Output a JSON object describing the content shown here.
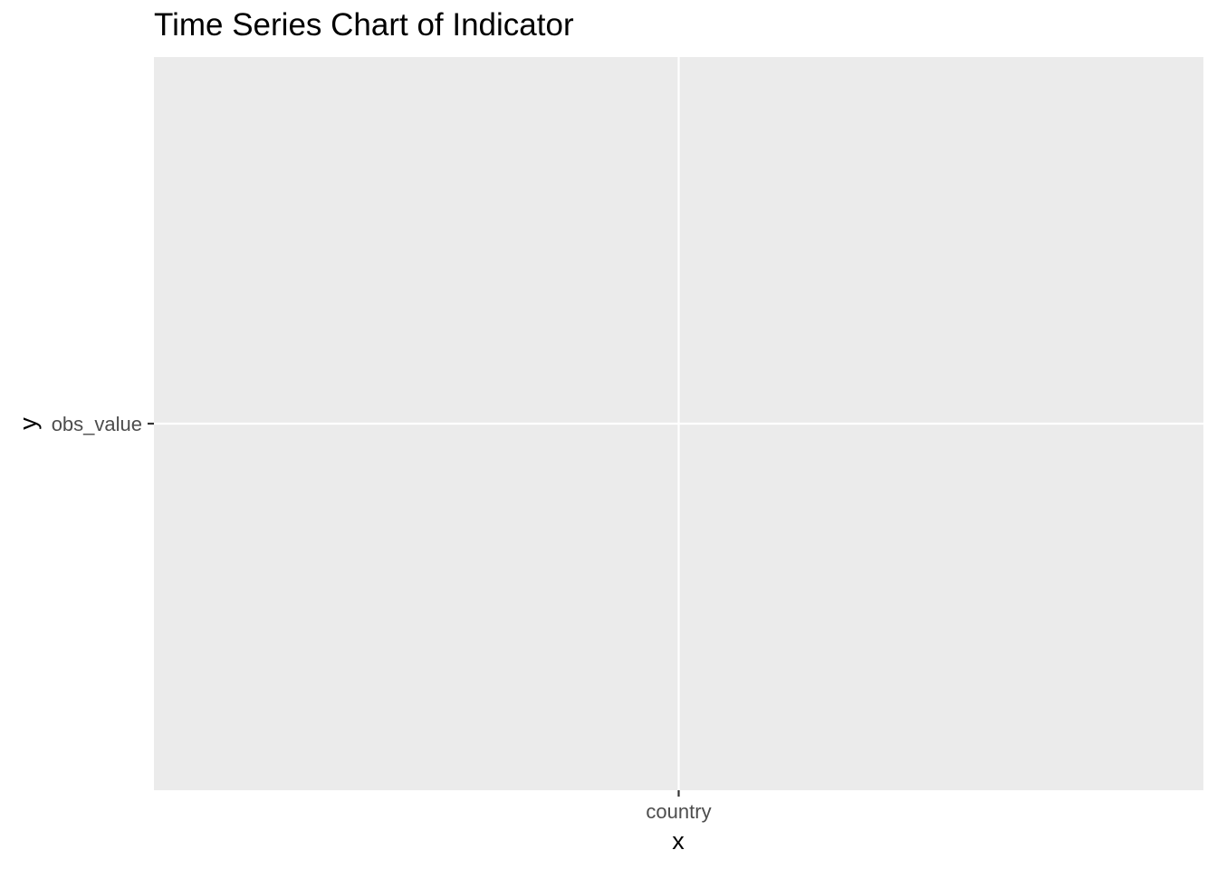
{
  "chart_data": {
    "type": "line",
    "title": "Time Series Chart of Indicator",
    "xlabel": "x",
    "ylabel": "y",
    "categories": [
      "country"
    ],
    "y_categories": [
      "obs_value"
    ],
    "series": [],
    "grid": true,
    "legend": "none"
  },
  "colors": {
    "panel_background": "#EBEBEB",
    "grid_line": "#FFFFFF",
    "tick_mark": "#333333",
    "tick_label": "#4D4D4D",
    "title_text": "#000000"
  }
}
